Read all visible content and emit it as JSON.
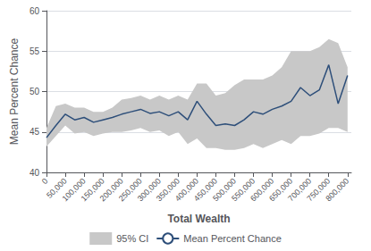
{
  "chart_data": {
    "type": "line",
    "xlabel": "Total Wealth",
    "ylabel": "Mean Percent Chance",
    "x": [
      0,
      25000,
      50000,
      75000,
      100000,
      125000,
      150000,
      175000,
      200000,
      225000,
      250000,
      275000,
      300000,
      325000,
      350000,
      375000,
      400000,
      425000,
      450000,
      475000,
      500000,
      525000,
      550000,
      575000,
      600000,
      625000,
      650000,
      675000,
      700000,
      725000,
      750000,
      775000,
      800000
    ],
    "series": [
      {
        "name": "95% CI",
        "type": "band",
        "color": "#c8c8c8",
        "lower": [
          43.2,
          44.5,
          45.8,
          44.8,
          45.0,
          44.5,
          44.8,
          45.0,
          45.0,
          45.2,
          45.5,
          45.0,
          45.2,
          44.5,
          45.0,
          43.5,
          44.2,
          43.0,
          43.0,
          42.8,
          42.8,
          43.0,
          43.5,
          43.0,
          43.5,
          44.0,
          43.5,
          44.5,
          44.5,
          44.8,
          45.5,
          45.5,
          45.0
        ],
        "upper": [
          45.5,
          48.2,
          48.5,
          48.0,
          48.0,
          47.5,
          47.5,
          48.0,
          49.0,
          49.2,
          49.5,
          49.0,
          49.5,
          49.0,
          49.5,
          49.0,
          51.0,
          51.0,
          49.5,
          49.8,
          50.8,
          51.5,
          51.5,
          51.5,
          52.0,
          53.0,
          55.0,
          55.0,
          55.0,
          55.5,
          56.5,
          56.0,
          53.0
        ]
      },
      {
        "name": "Mean Percent Chance",
        "type": "line",
        "color": "#2e4f7a",
        "values": [
          44.3,
          45.8,
          47.2,
          46.5,
          46.8,
          46.2,
          46.5,
          46.8,
          47.2,
          47.5,
          47.8,
          47.3,
          47.5,
          47.0,
          47.5,
          46.5,
          48.8,
          47.2,
          45.8,
          46.0,
          45.8,
          46.5,
          47.5,
          47.2,
          47.8,
          48.2,
          48.8,
          50.5,
          49.5,
          50.2,
          53.3,
          48.5,
          52.0
        ]
      }
    ],
    "xlim": [
      0,
      810000
    ],
    "xticks": [
      {
        "value": 0,
        "label": "0"
      },
      {
        "value": 50000,
        "label": "50,000"
      },
      {
        "value": 100000,
        "label": "100,000"
      },
      {
        "value": 150000,
        "label": "150,000"
      },
      {
        "value": 200000,
        "label": "200,000"
      },
      {
        "value": 250000,
        "label": "250,000"
      },
      {
        "value": 300000,
        "label": "300,000"
      },
      {
        "value": 350000,
        "label": "350,000"
      },
      {
        "value": 400000,
        "label": "400,000"
      },
      {
        "value": 450000,
        "label": "450,000"
      },
      {
        "value": 500000,
        "label": "500,000"
      },
      {
        "value": 550000,
        "label": "550,000"
      },
      {
        "value": 600000,
        "label": "600,000"
      },
      {
        "value": 650000,
        "label": "650,000"
      },
      {
        "value": 700000,
        "label": "700,000"
      },
      {
        "value": 750000,
        "label": "750,000"
      },
      {
        "value": 800000,
        "label": "800,000"
      }
    ],
    "ylim": [
      40,
      60
    ],
    "yticks": [
      40,
      45,
      50,
      55,
      60
    ],
    "grid": true,
    "legend": "bottom"
  }
}
